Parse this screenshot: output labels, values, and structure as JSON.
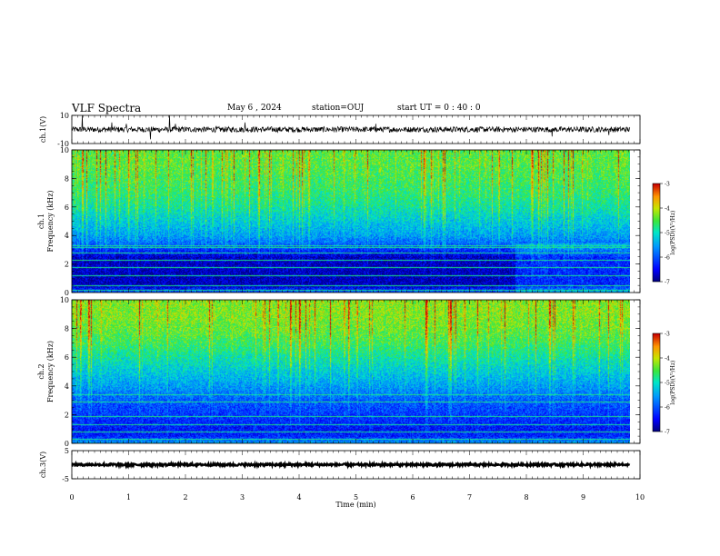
{
  "header": {
    "title": "VLF Spectra",
    "date": "May 6  , 2024",
    "station": "station=OUJ",
    "start_ut": "start  UT  =   0  : 40 : 0"
  },
  "chart_data": [
    {
      "type": "line",
      "name": "waveform-ch1",
      "ylabel": "ch.1(V)",
      "ylim": [
        -10,
        10
      ],
      "yticks": [
        "10",
        "-10"
      ],
      "xlim": [
        0,
        10
      ],
      "x_end": 9.82,
      "baseline": 0,
      "noise_amplitude": 2,
      "spikes": [
        {
          "x": 0.18,
          "y": 10
        },
        {
          "x": 0.7,
          "y": 5
        },
        {
          "x": 0.96,
          "y": 4
        },
        {
          "x": 1.38,
          "y": -7
        },
        {
          "x": 1.72,
          "y": 10
        },
        {
          "x": 1.82,
          "y": 4
        },
        {
          "x": 3.05,
          "y": 5
        },
        {
          "x": 5.35,
          "y": 4
        },
        {
          "x": 8.45,
          "y": -5
        },
        {
          "x": 9.45,
          "y": -4
        }
      ]
    },
    {
      "type": "heatmap",
      "name": "spectrogram-ch1",
      "ylabel": "ch.1\nFrequency (kHz)",
      "ylim": [
        0,
        10
      ],
      "yticks": [
        "0",
        "2",
        "4",
        "6",
        "8",
        "10"
      ],
      "xlim": [
        0,
        10
      ],
      "x_end": 9.82,
      "colorbar": {
        "label": "log(PSD)(V²/Hz)",
        "range": [
          -7,
          -3
        ],
        "ticks": [
          "-3",
          "-4",
          "-5",
          "-6",
          "-7"
        ]
      },
      "profile_khz": [
        0,
        0.5,
        1,
        1.5,
        2,
        2.5,
        3,
        3.5,
        4,
        5,
        6,
        7,
        8,
        9,
        10
      ],
      "profile_log_psd": [
        -5.8,
        -6.8,
        -6.8,
        -6.8,
        -6.8,
        -6.8,
        -6.3,
        -5.9,
        -5.6,
        -5.3,
        -5.0,
        -4.8,
        -4.7,
        -4.6,
        -4.6
      ],
      "lines_khz": [
        0.2,
        0.5,
        1.2,
        1.8,
        2.3,
        2.8,
        3.2,
        3.3
      ],
      "quiet_after_min": 7.8
    },
    {
      "type": "heatmap",
      "name": "spectrogram-ch2",
      "ylabel": "ch.2\nFrequency (kHz)",
      "ylim": [
        0,
        10
      ],
      "yticks": [
        "0",
        "2",
        "4",
        "6",
        "8",
        "10"
      ],
      "xlim": [
        0,
        10
      ],
      "x_end": 9.82,
      "colorbar": {
        "label": "log(PSD)(V²/Hz)",
        "range": [
          -7,
          -3
        ],
        "ticks": [
          "-3",
          "-4",
          "-5",
          "-6",
          "-7"
        ]
      },
      "profile_khz": [
        0,
        0.5,
        1,
        1.5,
        2,
        2.5,
        3,
        3.5,
        4,
        5,
        6,
        7,
        8,
        9,
        10
      ],
      "profile_log_psd": [
        -5.4,
        -6.3,
        -6.4,
        -6.3,
        -6.2,
        -6.1,
        -6.0,
        -5.8,
        -5.6,
        -5.3,
        -5.0,
        -4.7,
        -4.5,
        -4.4,
        -4.4
      ],
      "lines_khz": [
        0.3,
        0.8,
        1.3,
        1.9,
        2.9,
        3.4
      ],
      "quiet_after_min": 10
    },
    {
      "type": "line",
      "name": "waveform-ch3",
      "ylabel": "ch.3(V)",
      "ylim": [
        -5,
        5
      ],
      "yticks": [
        "5",
        "-5"
      ],
      "xlim": [
        0,
        10
      ],
      "x_end": 9.82,
      "baseline": 0,
      "noise_amplitude": 0.4
    }
  ],
  "xaxis": {
    "label": "Time (min)",
    "ticks": [
      "0",
      "1",
      "2",
      "3",
      "4",
      "5",
      "6",
      "7",
      "8",
      "9",
      "10"
    ]
  }
}
